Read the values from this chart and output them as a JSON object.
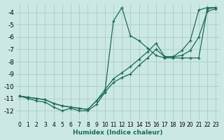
{
  "xlabel": "Humidex (Indice chaleur)",
  "bg_color": "#cce8e4",
  "line_color": "#1a6b5a",
  "grid_color": "#aaccc8",
  "xlim": [
    -0.5,
    23.5
  ],
  "ylim": [
    -12.8,
    -3.3
  ],
  "yticks": [
    -12,
    -11,
    -10,
    -9,
    -8,
    -7,
    -6,
    -5,
    -4
  ],
  "xticks": [
    0,
    1,
    2,
    3,
    4,
    5,
    6,
    7,
    8,
    9,
    10,
    11,
    12,
    13,
    14,
    15,
    16,
    17,
    18,
    19,
    20,
    21,
    22,
    23
  ],
  "series": [
    {
      "x": [
        0,
        1,
        2,
        3,
        4,
        5,
        6,
        7,
        8,
        9,
        10,
        11,
        12,
        13,
        14,
        15,
        16,
        17,
        18,
        19,
        20,
        21,
        22,
        23
      ],
      "y": [
        -10.8,
        -11.0,
        -11.2,
        -11.3,
        -11.7,
        -12.0,
        -11.8,
        -12.0,
        -12.0,
        -11.5,
        -10.5,
        -4.7,
        -3.6,
        -5.9,
        -6.3,
        -6.9,
        -7.5,
        -7.7,
        -7.7,
        -7.7,
        -7.7,
        -7.7,
        -3.7,
        -3.6
      ]
    },
    {
      "x": [
        0,
        1,
        2,
        3,
        4,
        5,
        6,
        7,
        8,
        9,
        10,
        11,
        12,
        13,
        14,
        15,
        16,
        17,
        18,
        19,
        20,
        21,
        22,
        23
      ],
      "y": [
        -10.8,
        -10.9,
        -11.0,
        -11.1,
        -11.4,
        -11.6,
        -11.7,
        -11.8,
        -11.9,
        -11.2,
        -10.3,
        -9.4,
        -8.9,
        -8.4,
        -7.8,
        -7.2,
        -6.5,
        -7.6,
        -7.6,
        -7.1,
        -6.3,
        -3.8,
        -3.6,
        -3.6
      ]
    },
    {
      "x": [
        0,
        1,
        2,
        3,
        4,
        5,
        6,
        7,
        8,
        9,
        10,
        11,
        12,
        13,
        14,
        15,
        16,
        17,
        18,
        19,
        20,
        21,
        22,
        23
      ],
      "y": [
        -10.8,
        -10.9,
        -11.0,
        -11.1,
        -11.4,
        -11.6,
        -11.7,
        -11.8,
        -11.9,
        -11.2,
        -10.5,
        -9.7,
        -9.3,
        -9.0,
        -8.3,
        -7.7,
        -7.0,
        -7.6,
        -7.6,
        -7.5,
        -7.1,
        -6.0,
        -3.9,
        -3.7
      ]
    }
  ]
}
